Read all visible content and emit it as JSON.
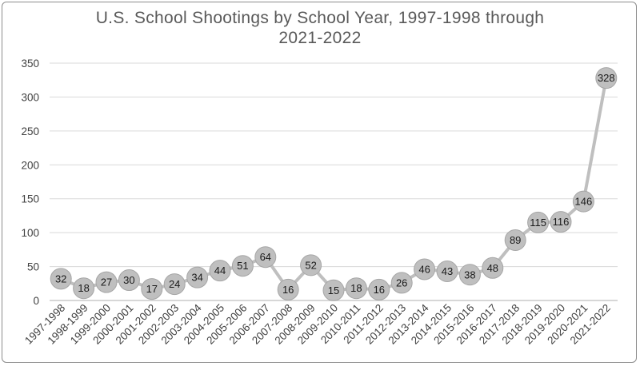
{
  "chart_data": {
    "type": "line",
    "title_line1": "U.S. School Shootings by School Year, 1997-1998 through",
    "title_line2": "2021-2022",
    "xlabel": "",
    "ylabel": "",
    "ylim": [
      0,
      350
    ],
    "yticks": [
      0,
      50,
      100,
      150,
      200,
      250,
      300,
      350
    ],
    "grid": true,
    "legend": "none",
    "categories": [
      "1997-1998",
      "1998-1999",
      "1999-2000",
      "2000-2001",
      "2001-2002",
      "2002-2003",
      "2003-2004",
      "2004-2005",
      "2005-2006",
      "2006-2007",
      "2007-2008",
      "2008-2009",
      "2009-2010",
      "2010-2011",
      "2011-2012",
      "2012-2013",
      "2013-2014",
      "2014-2015",
      "2015-2016",
      "2016-2017",
      "2017-2018",
      "2018-2019",
      "2019-2020",
      "2020-2021",
      "2021-2022"
    ],
    "values": [
      32,
      18,
      27,
      30,
      17,
      24,
      34,
      44,
      51,
      64,
      16,
      52,
      15,
      18,
      16,
      26,
      46,
      43,
      38,
      48,
      89,
      115,
      116,
      146,
      328
    ],
    "colors": {
      "line": "#bfbfbf",
      "marker_fill": "#bfbfbf",
      "marker_stroke": "#a6a6a6",
      "grid": "#d9d9d9",
      "axis": "#bfbfbf",
      "title": "#595959"
    }
  }
}
